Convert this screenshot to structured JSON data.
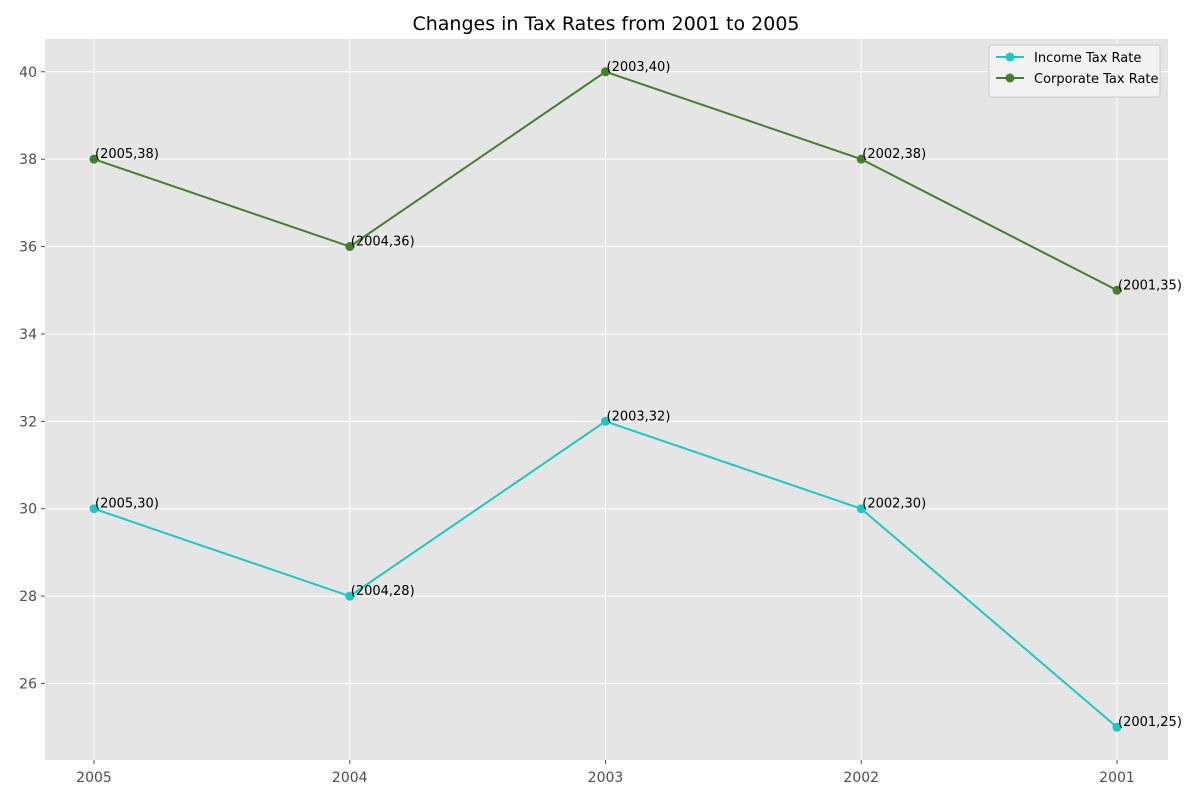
{
  "chart_data": {
    "type": "line",
    "title": "Changes in Tax Rates from 2001 to 2005",
    "xlabel": "",
    "ylabel": "",
    "categories": [
      "2005",
      "2004",
      "2003",
      "2002",
      "2001"
    ],
    "series": [
      {
        "name": "Income Tax Rate",
        "color": "#1cc8c4",
        "values": [
          30,
          28,
          32,
          30,
          25
        ],
        "point_labels": [
          "(2005,30)",
          "(2004,28)",
          "(2003,32)",
          "(2002,30)",
          "(2001,25)"
        ]
      },
      {
        "name": "Corporate Tax Rate",
        "color": "#437f2f",
        "values": [
          38,
          36,
          40,
          38,
          35
        ],
        "point_labels": [
          "(2005,38)",
          "(2004,36)",
          "(2003,40)",
          "(2002,38)",
          "(2001,35)"
        ]
      }
    ],
    "ylim": [
      24.25,
      40.75
    ],
    "yticks": [
      26,
      28,
      30,
      32,
      34,
      36,
      38,
      40
    ],
    "grid": true,
    "legend": "top-right",
    "colors": {
      "plot_background": "#e5e5e5",
      "grid": "#ffffff"
    }
  }
}
